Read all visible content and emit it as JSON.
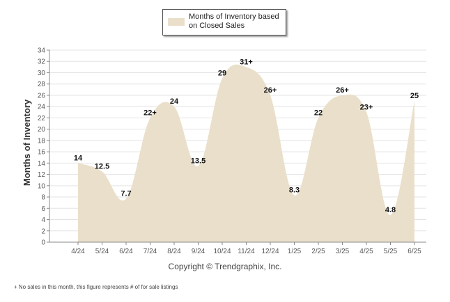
{
  "chart_data": {
    "type": "area",
    "title": "",
    "ylabel": "Months of Inventory",
    "xlabel": "",
    "categories": [
      "4/24",
      "5/24",
      "6/24",
      "7/24",
      "8/24",
      "9/24",
      "10/24",
      "11/24",
      "12/24",
      "1/25",
      "2/25",
      "3/25",
      "4/25",
      "5/25",
      "6/25"
    ],
    "series": [
      {
        "name": "Months of Inventory based on Closed Sales",
        "values": [
          14,
          12.5,
          7.7,
          22,
          24,
          13.5,
          29,
          31,
          26,
          8.3,
          22,
          26,
          23,
          4.8,
          25
        ],
        "labels": [
          "14",
          "12.5",
          "7.7",
          "22+",
          "24",
          "13.5",
          "29",
          "31+",
          "26+",
          "8.3",
          "22",
          "26+",
          "23+",
          "4.8",
          "25"
        ],
        "color": "#eadfca"
      }
    ],
    "ylim": [
      0,
      34
    ],
    "yticks": [
      0,
      2,
      4,
      6,
      8,
      10,
      12,
      14,
      16,
      18,
      20,
      22,
      24,
      26,
      28,
      30,
      32,
      34
    ],
    "grid": "horizontal",
    "legend_position": "top"
  },
  "legend": {
    "text": "Months of Inventory based on Closed Sales"
  },
  "credit": "Copyright © Trendgraphix, Inc.",
  "footnote": "+ No sales in this month, this figure represents # of for sale listings",
  "colors": {
    "area": "#eadfca",
    "grid": "#e3e3e3",
    "axis": "#888888"
  }
}
